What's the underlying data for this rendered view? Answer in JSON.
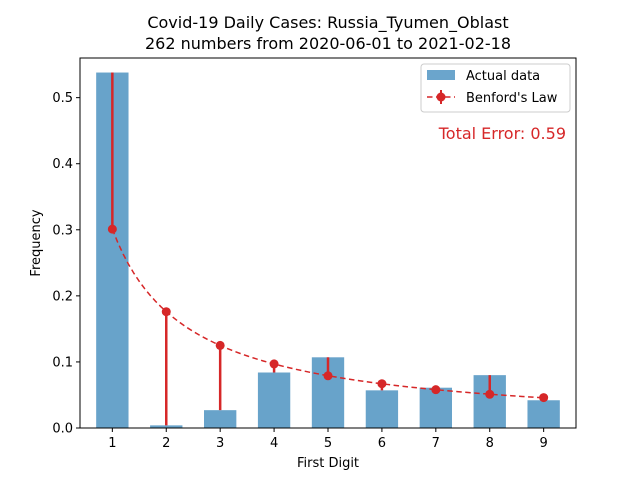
{
  "chart_data": {
    "type": "bar",
    "title": "Covid-19 Daily Cases: Russia_Tyumen_Oblast",
    "subtitle": "262 numbers from 2020-06-01 to 2021-02-18",
    "xlabel": "First Digit",
    "ylabel": "Frequency",
    "categories": [
      "1",
      "2",
      "3",
      "4",
      "5",
      "6",
      "7",
      "8",
      "9"
    ],
    "ylim": [
      0,
      0.56
    ],
    "yticks": [
      "0.0",
      "0.1",
      "0.2",
      "0.3",
      "0.4",
      "0.5"
    ],
    "series": [
      {
        "name": "Actual data",
        "type": "bar",
        "color": "#5b9bc6",
        "values": [
          0.538,
          0.004,
          0.027,
          0.084,
          0.107,
          0.057,
          0.061,
          0.08,
          0.042
        ]
      },
      {
        "name": "Benford's Law",
        "type": "line",
        "style": "dashed-with-markers",
        "color": "#d62728",
        "values": [
          0.301,
          0.176,
          0.125,
          0.097,
          0.079,
          0.067,
          0.058,
          0.051,
          0.046
        ]
      }
    ],
    "annotation": "Total Error: 0.59",
    "annotation_color": "#d62728",
    "legend_position": "top-right",
    "grid": false
  }
}
